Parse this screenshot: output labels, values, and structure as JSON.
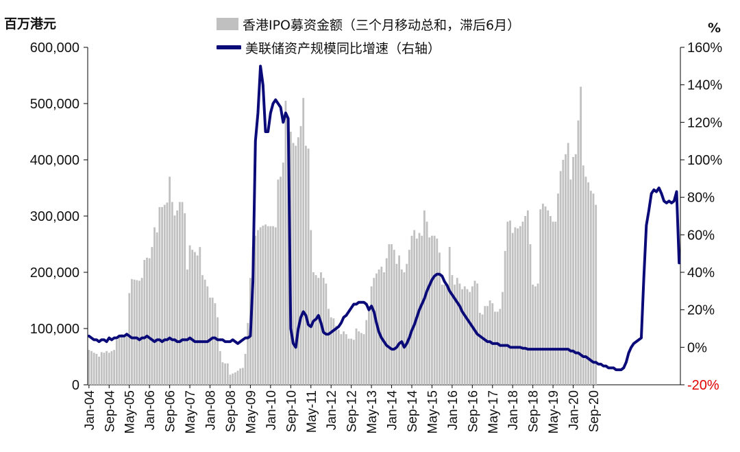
{
  "chart_data": {
    "type": "bar+line",
    "left_axis_unit": "百万港元",
    "right_axis_unit": "%",
    "legend": [
      {
        "label": "香港IPO募资金额（三个月移动总和，滞后6月）",
        "kind": "bar",
        "color": "#c0c0c0"
      },
      {
        "label": "美联储资产规模同比增速（右轴）",
        "kind": "line",
        "color": "#0a0a78"
      }
    ],
    "left_axis": {
      "min": 0,
      "max": 600000,
      "ticks": [
        "0",
        "100,000",
        "200,000",
        "300,000",
        "400,000",
        "500,000",
        "600,000"
      ]
    },
    "right_axis": {
      "min": -20,
      "max": 160,
      "ticks": [
        "-20%",
        "0%",
        "20%",
        "40%",
        "60%",
        "80%",
        "100%",
        "120%",
        "140%",
        "160%"
      ],
      "negative_tick_color": "#e00000"
    },
    "x_tick_labels": [
      "Jan-04",
      "Sep-04",
      "May-05",
      "Jan-06",
      "Sep-06",
      "May-07",
      "Jan-08",
      "Sep-08",
      "May-09",
      "Jan-10",
      "Sep-10",
      "May-11",
      "Jan-12",
      "Sep-12",
      "May-13",
      "Jan-14",
      "Sep-14",
      "May-15",
      "Jan-16",
      "Sep-16",
      "May-17",
      "Jan-18",
      "Sep-18",
      "May-19",
      "Jan-20",
      "Sep-20"
    ],
    "x_tick_step_months": 8,
    "bar_series": {
      "name": "香港IPO募资金额（三个月移动总和，滞后6月）",
      "start_month": "Jan-04",
      "values": [
        62000,
        60000,
        57000,
        55000,
        50000,
        58000,
        57000,
        60000,
        57000,
        60000,
        62000,
        80000,
        85000,
        90000,
        88000,
        89000,
        163000,
        188000,
        187000,
        186000,
        185000,
        190000,
        222000,
        226000,
        225000,
        245000,
        280000,
        271000,
        316000,
        316000,
        320000,
        324000,
        370000,
        325000,
        301000,
        310000,
        325000,
        325000,
        305000,
        205000,
        248000,
        240000,
        236000,
        230000,
        245000,
        195000,
        187000,
        175000,
        155000,
        155000,
        145000,
        120000,
        60000,
        40000,
        38000,
        38000,
        18000,
        20000,
        22000,
        25000,
        29000,
        30000,
        55000,
        110000,
        190000,
        245000,
        265000,
        275000,
        280000,
        283000,
        285000,
        282000,
        282000,
        282000,
        280000,
        365000,
        370000,
        395000,
        505000,
        460000,
        450000,
        430000,
        425000,
        440000,
        460000,
        510000,
        425000,
        420000,
        275000,
        200000,
        195000,
        190000,
        200000,
        190000,
        180000,
        135000,
        120000,
        118000,
        105000,
        98000,
        90000,
        95000,
        90000,
        82000,
        82000,
        80000,
        100000,
        95000,
        92000,
        90000,
        115000,
        140000,
        175000,
        190000,
        198000,
        205000,
        210000,
        200000,
        225000,
        250000,
        250000,
        240000,
        215000,
        230000,
        205000,
        200000,
        215000,
        240000,
        265000,
        275000,
        260000,
        270000,
        265000,
        310000,
        290000,
        262000,
        265000,
        265000,
        260000,
        235000,
        178000,
        178000,
        175000,
        245000,
        195000,
        178000,
        190000,
        180000,
        170000,
        175000,
        170000,
        165000,
        175000,
        185000,
        180000,
        128000,
        125000,
        140000,
        140000,
        150000,
        145000,
        130000,
        130000,
        135000,
        165000,
        238000,
        290000,
        292000,
        270000,
        280000,
        278000,
        282000,
        290000,
        300000,
        310000,
        250000,
        178000,
        175000,
        180000,
        312000,
        322000,
        317000,
        310000,
        300000,
        290000,
        290000,
        340000,
        380000,
        400000,
        410000,
        430000,
        365000,
        405000,
        410000,
        470000,
        530000,
        390000,
        370000,
        360000,
        345000,
        340000,
        320000
      ]
    },
    "line_series": {
      "name": "美联储资产规模同比增速（右轴）",
      "start_month": "Jan-04",
      "values": [
        6,
        5,
        4,
        4,
        3,
        4,
        4,
        3,
        5,
        4,
        5,
        5,
        6,
        6,
        6,
        7,
        6,
        5,
        5,
        5,
        4,
        5,
        5,
        6,
        5,
        4,
        3,
        4,
        4,
        3,
        4,
        4,
        5,
        4,
        4,
        3,
        3,
        4,
        4,
        4,
        5,
        4,
        3,
        3,
        3,
        3,
        3,
        3,
        4,
        5,
        5,
        4,
        4,
        4,
        3,
        3,
        3,
        4,
        3,
        2,
        3,
        4,
        5,
        5,
        6,
        35,
        110,
        125,
        150,
        140,
        115,
        115,
        125,
        130,
        132,
        130,
        128,
        120,
        125,
        122,
        10,
        2,
        0,
        10,
        16,
        19,
        17,
        12,
        11,
        14,
        15,
        17,
        13,
        8,
        7,
        7,
        8,
        9,
        10,
        11,
        13,
        16,
        17,
        19,
        21,
        23,
        23,
        24,
        24,
        24,
        23,
        20,
        22,
        19,
        13,
        8,
        5,
        3,
        1,
        0,
        -1,
        -1,
        0,
        2,
        3,
        0,
        2,
        5,
        9,
        12,
        16,
        20,
        23,
        26,
        30,
        33,
        36,
        38,
        39,
        39,
        38,
        35,
        33,
        30,
        28,
        26,
        24,
        22,
        19,
        17,
        15,
        13,
        11,
        9,
        7,
        6,
        5,
        4,
        3,
        3,
        2,
        2,
        2,
        1,
        1,
        1,
        1,
        0,
        0,
        0,
        0,
        0,
        -0.5,
        -0.5,
        -1,
        -1,
        -1,
        -1,
        -1,
        -1,
        -1,
        -1,
        -1,
        -1,
        -1,
        -1,
        -1,
        -1,
        -1,
        -1,
        -1,
        -2,
        -2,
        -3,
        -3,
        -4,
        -5,
        -5,
        -6,
        -7,
        -8,
        -8,
        -9,
        -9,
        -10,
        -10,
        -11,
        -11,
        -11,
        -12,
        -12,
        -12,
        -11,
        -8,
        -3,
        0,
        2,
        3,
        4,
        5,
        37,
        65,
        73,
        82,
        84,
        83,
        85,
        82,
        78,
        77,
        78,
        77,
        78,
        83,
        45
      ]
    }
  }
}
